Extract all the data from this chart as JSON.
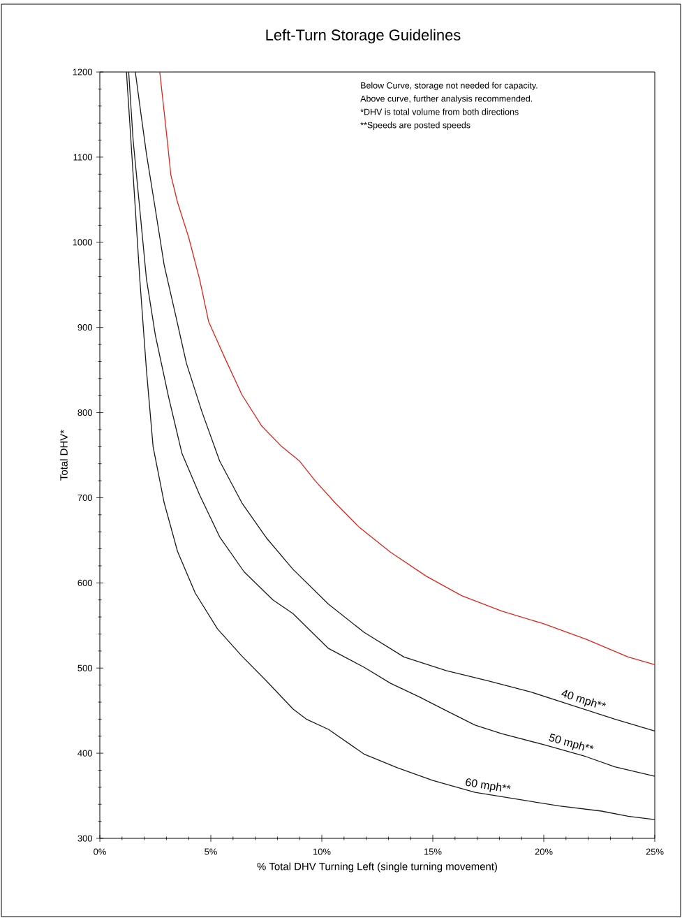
{
  "chart_data": {
    "type": "line",
    "title": "Left-Turn Storage Guidelines",
    "xlabel": "% Total DHV Turning Left (single turning movement)",
    "ylabel": "Total DHV*",
    "annotations": [
      "Below Curve, storage not needed for capacity.",
      "Above curve, further analysis recommended.",
      "*DHV is total volume from both directions",
      "**Speeds are posted speeds"
    ],
    "xlim": [
      0,
      25
    ],
    "ylim": [
      300,
      1200
    ],
    "xticks": [
      {
        "value": 0,
        "label": "0%"
      },
      {
        "value": 5,
        "label": "5%"
      },
      {
        "value": 10,
        "label": "10%"
      },
      {
        "value": 15,
        "label": "15%"
      },
      {
        "value": 20,
        "label": "20%"
      },
      {
        "value": 25,
        "label": "25%"
      }
    ],
    "yticks": [
      300,
      400,
      500,
      600,
      700,
      800,
      900,
      1000,
      1100,
      1200
    ],
    "line_style": "solid",
    "series": [
      {
        "color": "#e2231a",
        "x": [
          2.7,
          3.0,
          3.2,
          3.5,
          4.0,
          4.5,
          4.9,
          5.6,
          6.4,
          7.3,
          8.2,
          9.0,
          9.7,
          10.6,
          11.7,
          13.1,
          14.7,
          16.3,
          18.1,
          20.0,
          21.9,
          23.8,
          25.0
        ],
        "values": [
          1200,
          1129,
          1079,
          1047,
          1006,
          956,
          907,
          866,
          821,
          784,
          760,
          743,
          720,
          694,
          665,
          636,
          608,
          585,
          567,
          552,
          534,
          513,
          504
        ]
      },
      {
        "name": "40 mph**",
        "color": "#1a1a1a",
        "x": [
          1.6,
          1.8,
          2.1,
          2.5,
          2.9,
          3.4,
          3.9,
          4.6,
          5.4,
          6.4,
          7.5,
          8.7,
          10.3,
          11.9,
          13.7,
          15.6,
          17.5,
          19.4,
          21.3,
          23.2,
          25.0
        ],
        "values": [
          1200,
          1161,
          1104,
          1039,
          973,
          916,
          858,
          801,
          743,
          694,
          653,
          616,
          575,
          542,
          513,
          497,
          485,
          472,
          456,
          440,
          426
        ]
      },
      {
        "name": "50 mph**",
        "color": "#1a1a1a",
        "x": [
          1.3,
          1.5,
          1.8,
          2.1,
          2.5,
          3.1,
          3.7,
          4.5,
          5.4,
          6.5,
          7.8,
          8.7,
          10.3,
          11.9,
          13.1,
          14.4,
          15.6,
          16.9,
          18.1,
          20.0,
          21.9,
          23.2,
          25.0
        ],
        "values": [
          1200,
          1120,
          1039,
          957,
          891,
          818,
          752,
          703,
          654,
          613,
          580,
          564,
          523,
          501,
          482,
          466,
          450,
          433,
          423,
          410,
          396,
          384,
          373
        ]
      },
      {
        "name": "60 mph**",
        "color": "#1a1a1a",
        "x": [
          1.2,
          1.4,
          1.6,
          1.8,
          2.1,
          2.4,
          2.9,
          3.5,
          4.3,
          5.3,
          6.4,
          7.5,
          8.7,
          9.3,
          10.3,
          11.9,
          13.4,
          15.0,
          16.9,
          18.8,
          20.7,
          22.6,
          23.8,
          25.0
        ],
        "values": [
          1200,
          1120,
          1039,
          957,
          850,
          760,
          694,
          637,
          588,
          546,
          514,
          485,
          452,
          440,
          428,
          399,
          383,
          368,
          354,
          346,
          338,
          332,
          326,
          322
        ]
      }
    ]
  }
}
